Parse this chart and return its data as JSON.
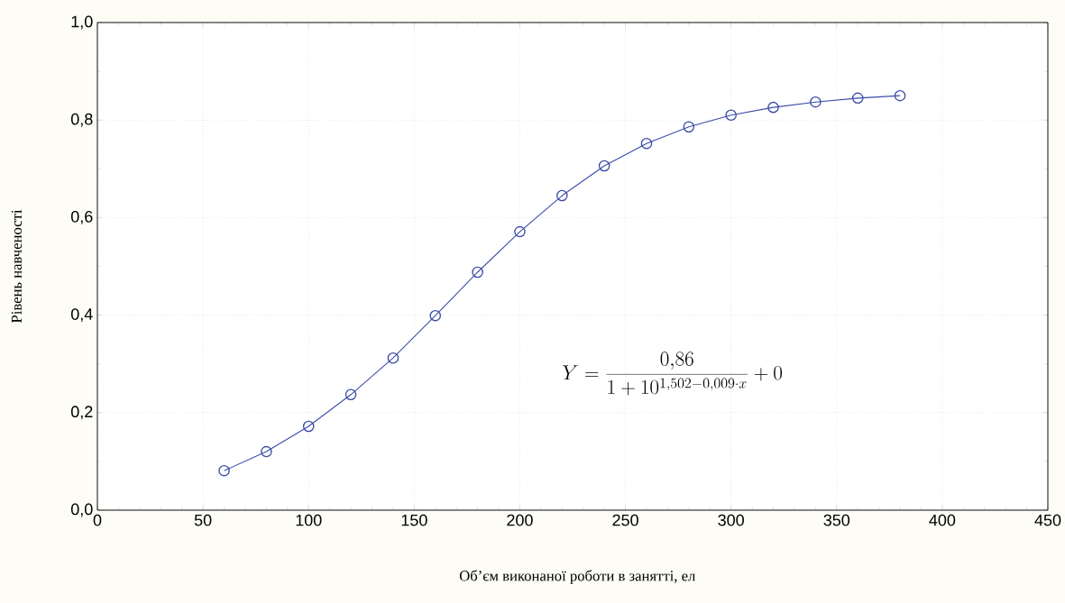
{
  "chart_data": {
    "type": "line",
    "xlabel": "Об’єм виконаної роботи в занятті, ел",
    "ylabel": "Рівень навченості",
    "x": [
      60,
      80,
      100,
      120,
      140,
      160,
      180,
      200,
      220,
      240,
      260,
      280,
      300,
      320,
      340,
      360,
      380
    ],
    "series": [
      {
        "color": "#3a4ba8",
        "values": [
          0.081,
          0.12,
          0.172,
          0.237,
          0.312,
          0.399,
          0.488,
          0.571,
          0.645,
          0.706,
          0.752,
          0.786,
          0.81,
          0.826,
          0.837,
          0.845,
          0.85
        ]
      }
    ],
    "xlim": [
      0,
      450
    ],
    "xticks": [
      0,
      50,
      100,
      150,
      200,
      250,
      300,
      350,
      400,
      450
    ],
    "ylim": [
      0,
      1
    ],
    "yticks": [
      {
        "value": 0,
        "label": "0,0"
      },
      {
        "value": 0.2,
        "label": "0,2"
      },
      {
        "value": 0.4,
        "label": "0,4"
      },
      {
        "value": 0.6,
        "label": "0,6"
      },
      {
        "value": 0.8,
        "label": "0,8"
      },
      {
        "value": 1,
        "label": "1,0"
      }
    ],
    "grid": true,
    "marker": "circle",
    "line_style": "solid",
    "annotations": [
      "Y=\\frac{0{,}86}{1+10^{1{,}502-0{,}009\\cdot x}}+0"
    ]
  }
}
